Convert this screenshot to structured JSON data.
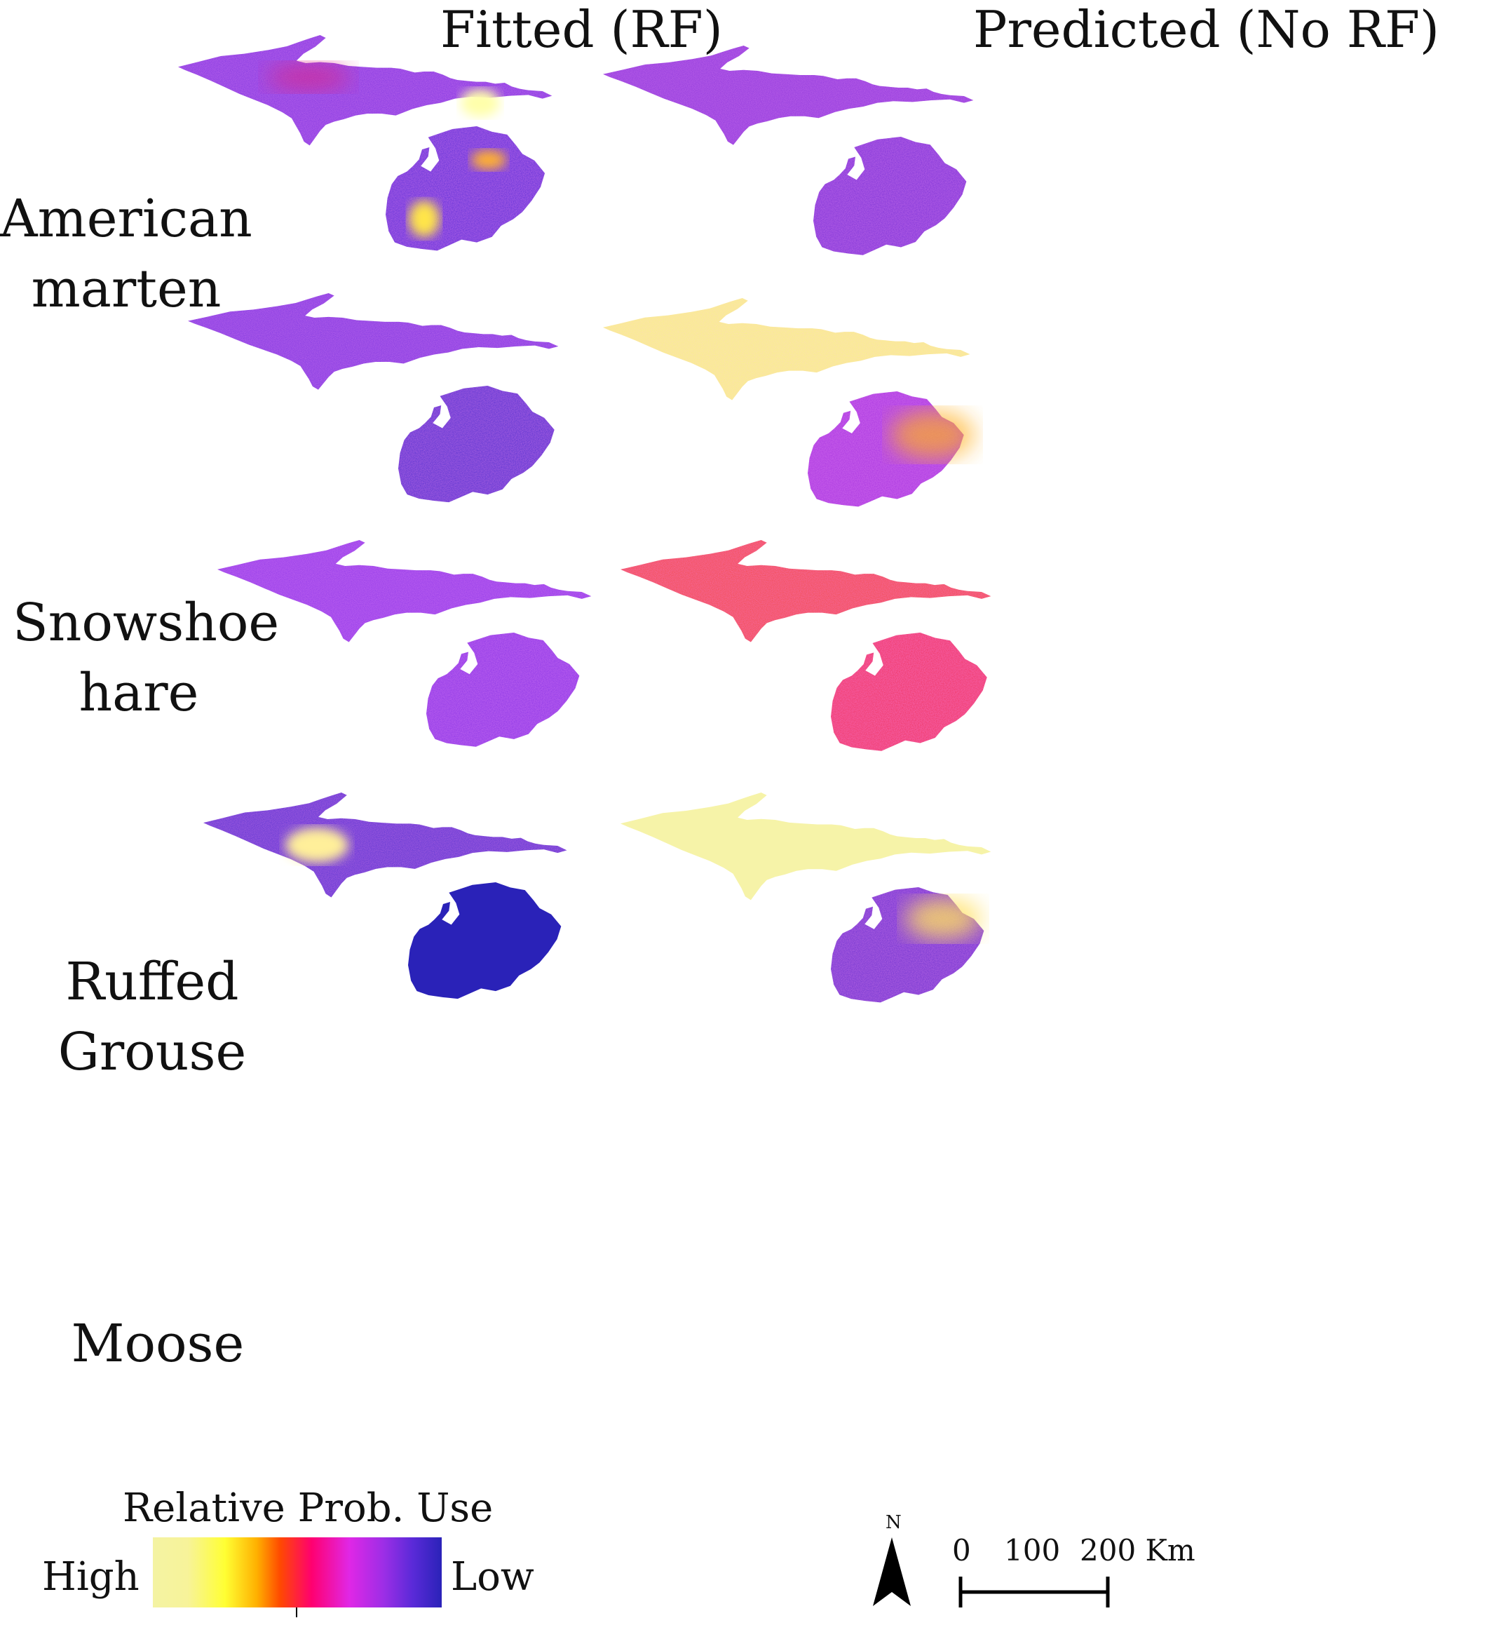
{
  "columns": {
    "fitted": "Fitted (RF)",
    "predicted": "Predicted (No RF)"
  },
  "rows": [
    {
      "line1": "American",
      "line2": "marten"
    },
    {
      "line1": "Snowshoe",
      "line2": "hare"
    },
    {
      "line1": "Ruffed",
      "line2": "Grouse"
    },
    {
      "line1": "Moose",
      "line2": ""
    }
  ],
  "legend": {
    "title": "Relative Prob. Use",
    "high": "High",
    "low": "Low",
    "gradient": [
      "#f4f3a2",
      "#ffff33",
      "#ff4a00",
      "#ff0070",
      "#e027e6",
      "#5a2ad8",
      "#2a22b8"
    ]
  },
  "north_label": "N",
  "scale": {
    "labels": [
      "0",
      "100",
      "200 Km"
    ]
  },
  "maps": {
    "fitted": [
      {
        "species": "American marten",
        "base": "#6a2fd4",
        "upper_base": "#7e30e0",
        "hotspots": [
          "#ffffaa",
          "#ffe54a",
          "#ffe54a"
        ]
      },
      {
        "species": "Snowshoe hare",
        "base": "#4a2ad0",
        "upper_base": "#7a32e0",
        "hotspots": []
      },
      {
        "species": "Ruffed Grouse",
        "base": "#8a32e6",
        "upper_base": "#8f36e8",
        "hotspots": []
      },
      {
        "species": "Moose",
        "base": "#2a22b8",
        "upper_base": "#4a2bd0",
        "hotspots": [
          "#ffef9a"
        ]
      }
    ],
    "predicted": [
      {
        "species": "American marten",
        "base": "#7a2ed8",
        "upper_base": "#8a30dc",
        "hotspots": []
      },
      {
        "species": "Snowshoe hare",
        "base": "#a833e0",
        "upper_base": "#f9f57a",
        "hotspots": [
          "#ffb020"
        ]
      },
      {
        "species": "Ruffed Grouse",
        "base": "#f0305a",
        "upper_base": "#f24a2a",
        "hotspots": []
      },
      {
        "species": "Moose",
        "base": "#6a2fd0",
        "upper_base": "#f6f3a8",
        "hotspots": [
          "#ffe060"
        ]
      }
    ]
  }
}
